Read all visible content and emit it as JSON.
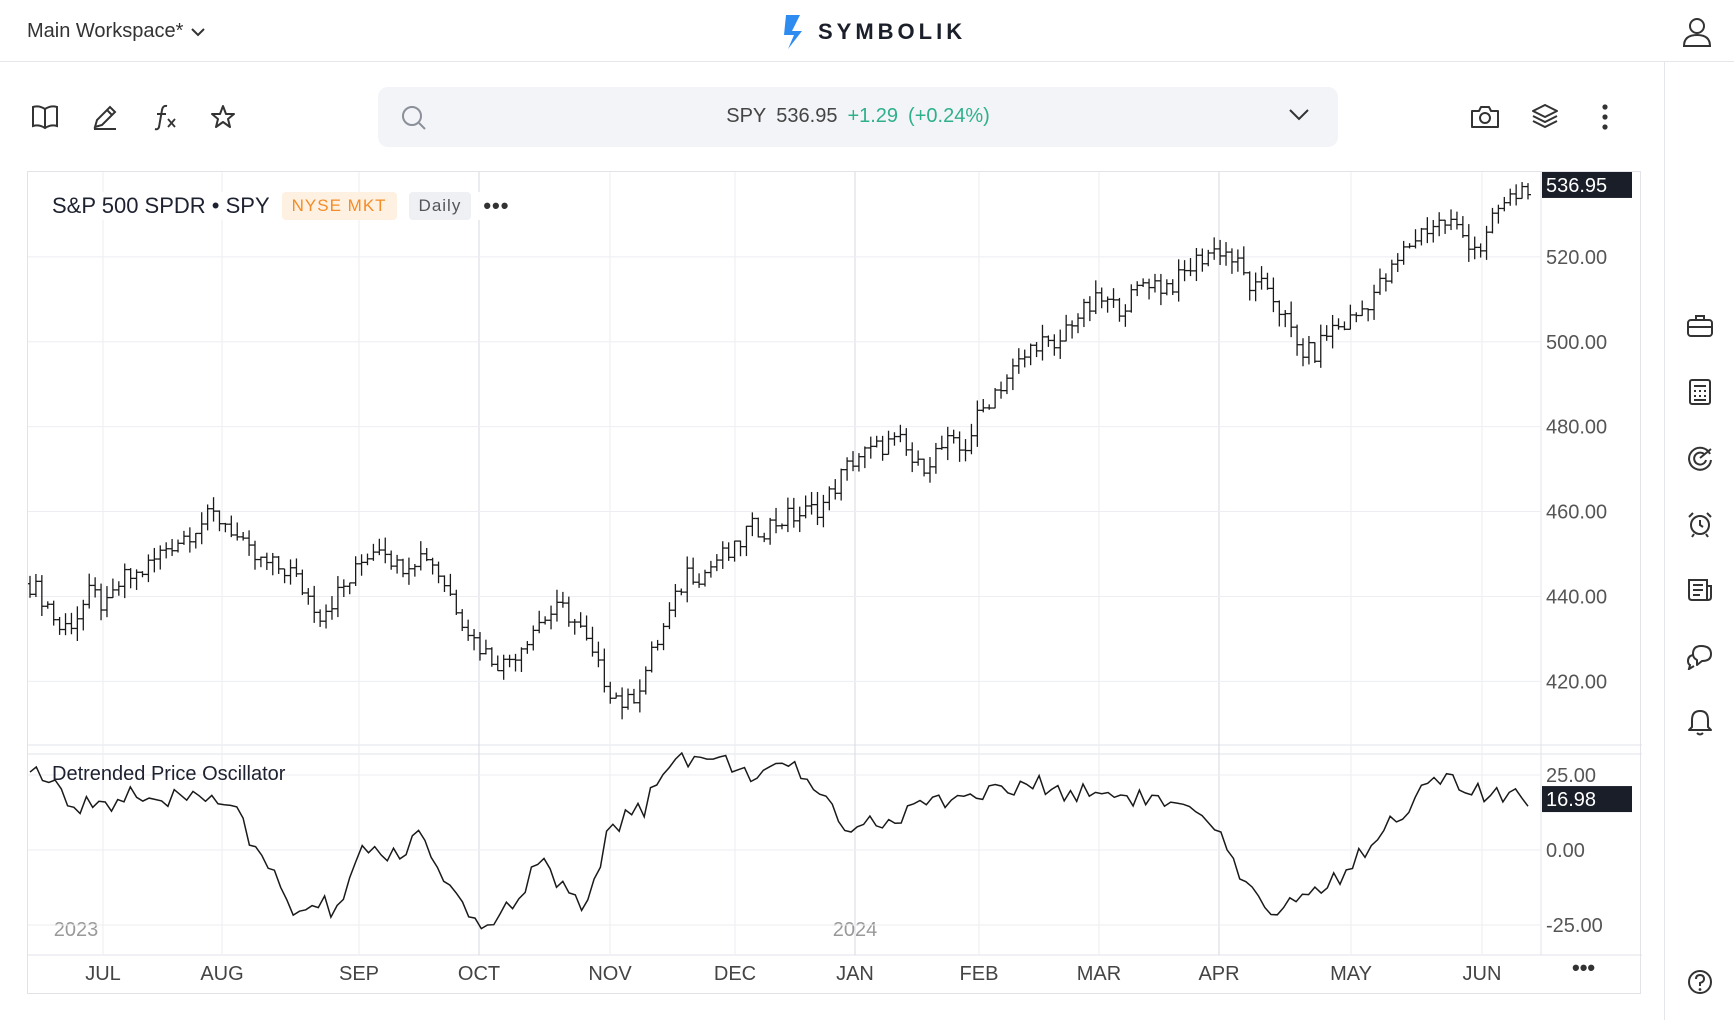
{
  "header": {
    "workspace_label": "Main Workspace*",
    "brand": "SYMBOLIK"
  },
  "search": {
    "symbol": "SPY",
    "price": "536.95",
    "change": "+1.29",
    "change_pct": "(+0.24%)",
    "accent_color": "#2fb08c"
  },
  "chart_header": {
    "title": "S&P 500 SPDR • SPY",
    "exchange": "NYSE MKT",
    "interval": "Daily",
    "more": "•••"
  },
  "oscillator": {
    "title": "Detrended Price Oscillator"
  },
  "bottom_more": "•••",
  "toolbar_icons": [
    "book-icon",
    "pencil-icon",
    "fx-icon",
    "star-icon"
  ],
  "toolbar_right_icons": [
    "camera-icon",
    "layers-icon",
    "kebab-icon"
  ],
  "rail_icons": [
    "briefcase-icon",
    "calculator-icon",
    "radar-icon",
    "alarm-icon",
    "news-icon",
    "chat-icon",
    "bell-icon",
    "help-icon"
  ],
  "chart_data": [
    {
      "type": "ohlc",
      "title": "S&P 500 SPDR • SPY",
      "ylim": [
        405,
        540
      ],
      "y_ticks": [
        "420.00",
        "440.00",
        "460.00",
        "480.00",
        "500.00",
        "520.00"
      ],
      "last_value_label": "536.95",
      "x_months": [
        "JUL",
        "AUG",
        "SEP",
        "OCT",
        "NOV",
        "DEC",
        "JAN",
        "FEB",
        "MAR",
        "APR",
        "MAY",
        "JUN"
      ],
      "year_labels": [
        "2023",
        "2024"
      ],
      "closes": [
        443,
        439,
        432,
        435,
        441,
        437,
        444,
        445,
        448,
        452,
        454,
        457,
        459,
        457,
        451,
        448,
        447,
        446,
        441,
        436,
        440,
        444,
        450,
        453,
        447,
        449,
        450,
        444,
        437,
        430,
        426,
        424,
        428,
        433,
        436,
        437,
        432,
        424,
        418,
        414,
        420,
        429,
        437,
        446,
        445,
        449,
        450,
        456,
        456,
        458,
        459,
        460,
        462,
        468,
        473,
        474,
        476,
        476,
        470,
        473,
        476,
        474,
        482,
        488,
        492,
        496,
        501,
        497,
        505,
        507,
        510,
        508,
        510,
        515,
        513,
        514,
        518,
        521,
        522,
        518,
        512,
        513,
        506,
        498,
        497,
        503,
        504,
        507,
        512,
        516,
        522,
        526,
        528,
        528,
        524,
        522,
        531,
        534,
        536.95
      ],
      "color": "#1a1a1a"
    },
    {
      "type": "line",
      "title": "Detrended Price Oscillator",
      "ylim": [
        -35,
        32
      ],
      "y_ticks": [
        "25.00",
        "0.00",
        "-25.00"
      ],
      "last_value_label": "16.98",
      "values": [
        28,
        22,
        14,
        17,
        15,
        19,
        13,
        17,
        19,
        18,
        16,
        -2,
        -10,
        -22,
        -18,
        -20,
        -2,
        -1,
        -2,
        6,
        -10,
        -20,
        -25,
        -22,
        -12,
        -4,
        -14,
        -20,
        2,
        12,
        14,
        30,
        31,
        30,
        29,
        26,
        25,
        27,
        24,
        14,
        8,
        10,
        8,
        14,
        16,
        18,
        18,
        20,
        20,
        22,
        20,
        19,
        20,
        18,
        18,
        16,
        14,
        10,
        4,
        -10,
        -20,
        -18,
        -16,
        -12,
        -8,
        0,
        8,
        14,
        20,
        24,
        20,
        18,
        17,
        16.98
      ],
      "color": "#1a1a1a"
    }
  ]
}
